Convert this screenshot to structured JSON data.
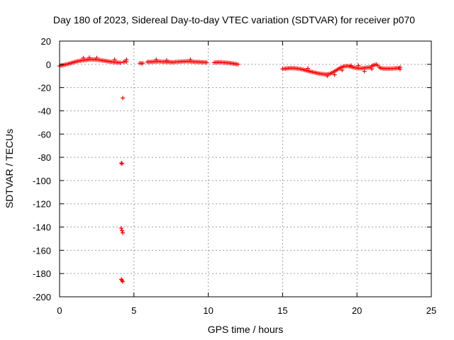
{
  "chart_data": {
    "type": "scatter",
    "title": "Day 180 of 2023, Sidereal Day-to-day VTEC variation (SDTVAR) for receiver p070",
    "xlabel": "GPS time / hours",
    "ylabel": "SDTVAR / TECUs",
    "xlim": [
      0,
      25
    ],
    "ylim": [
      -200,
      20
    ],
    "xticks": [
      0,
      5,
      10,
      15,
      20,
      25
    ],
    "yticks": [
      20,
      0,
      -20,
      -40,
      -60,
      -80,
      -100,
      -120,
      -140,
      -160,
      -180,
      -200
    ],
    "grid": true,
    "marker": "+",
    "marker_color": "#ff0000",
    "series": [
      {
        "name": "SDTVAR",
        "points": [
          [
            0.0,
            -1.5
          ],
          [
            0.1,
            -1.0
          ],
          [
            0.2,
            -0.8
          ],
          [
            0.3,
            -0.5
          ],
          [
            0.4,
            -0.2
          ],
          [
            0.5,
            0.2
          ],
          [
            0.6,
            0.5
          ],
          [
            0.7,
            0.8
          ],
          [
            0.8,
            1.2
          ],
          [
            0.9,
            1.5
          ],
          [
            1.0,
            2.0
          ],
          [
            1.1,
            2.3
          ],
          [
            1.2,
            2.6
          ],
          [
            1.3,
            2.9
          ],
          [
            1.4,
            3.1
          ],
          [
            1.5,
            3.3
          ],
          [
            1.6,
            3.5
          ],
          [
            1.7,
            3.7
          ],
          [
            1.8,
            3.8
          ],
          [
            1.9,
            4.0
          ],
          [
            2.0,
            4.1
          ],
          [
            2.1,
            4.2
          ],
          [
            2.2,
            4.2
          ],
          [
            2.3,
            4.1
          ],
          [
            2.4,
            4.0
          ],
          [
            2.5,
            3.9
          ],
          [
            2.6,
            3.8
          ],
          [
            2.7,
            3.7
          ],
          [
            2.8,
            3.5
          ],
          [
            2.9,
            3.3
          ],
          [
            3.0,
            3.1
          ],
          [
            3.1,
            2.9
          ],
          [
            3.2,
            2.7
          ],
          [
            3.3,
            2.5
          ],
          [
            3.4,
            2.3
          ],
          [
            3.5,
            2.1
          ],
          [
            3.6,
            2.0
          ],
          [
            3.7,
            1.8
          ],
          [
            3.8,
            1.7
          ],
          [
            3.9,
            1.6
          ],
          [
            4.0,
            1.5
          ],
          [
            4.1,
            1.3
          ],
          [
            4.3,
            2.0
          ],
          [
            4.4,
            2.5
          ],
          [
            4.5,
            2.2
          ],
          [
            4.25,
            -29
          ],
          [
            4.15,
            -85
          ],
          [
            4.2,
            -85.5
          ],
          [
            4.15,
            -141
          ],
          [
            4.2,
            -143
          ],
          [
            4.25,
            -145
          ],
          [
            4.15,
            -185
          ],
          [
            4.2,
            -186
          ],
          [
            4.25,
            -187
          ],
          [
            5.4,
            1.0
          ],
          [
            5.5,
            0.8
          ],
          [
            5.6,
            1.0
          ],
          [
            5.9,
            2.0
          ],
          [
            6.0,
            2.1
          ],
          [
            6.1,
            2.0
          ],
          [
            6.2,
            2.2
          ],
          [
            6.3,
            2.2
          ],
          [
            6.4,
            2.3
          ],
          [
            6.5,
            2.4
          ],
          [
            6.6,
            2.4
          ],
          [
            6.7,
            2.5
          ],
          [
            6.8,
            2.4
          ],
          [
            6.9,
            2.3
          ],
          [
            7.0,
            2.2
          ],
          [
            7.1,
            2.2
          ],
          [
            7.2,
            2.1
          ],
          [
            7.3,
            2.0
          ],
          [
            7.4,
            2.0
          ],
          [
            7.5,
            1.9
          ],
          [
            7.6,
            1.8
          ],
          [
            7.7,
            1.9
          ],
          [
            7.8,
            2.0
          ],
          [
            7.9,
            2.1
          ],
          [
            8.0,
            2.2
          ],
          [
            8.1,
            2.3
          ],
          [
            8.2,
            2.4
          ],
          [
            8.3,
            2.5
          ],
          [
            8.4,
            2.5
          ],
          [
            8.5,
            2.6
          ],
          [
            8.6,
            2.6
          ],
          [
            8.7,
            2.5
          ],
          [
            8.8,
            2.4
          ],
          [
            8.9,
            2.3
          ],
          [
            9.0,
            2.2
          ],
          [
            9.1,
            2.1
          ],
          [
            9.2,
            2.1
          ],
          [
            9.3,
            2.0
          ],
          [
            9.4,
            2.0
          ],
          [
            9.5,
            1.9
          ],
          [
            9.6,
            1.8
          ],
          [
            9.7,
            1.8
          ],
          [
            9.8,
            1.7
          ],
          [
            9.9,
            1.6
          ],
          [
            10.4,
            1.5
          ],
          [
            10.5,
            1.6
          ],
          [
            10.6,
            1.7
          ],
          [
            10.7,
            1.8
          ],
          [
            10.8,
            1.8
          ],
          [
            10.9,
            1.7
          ],
          [
            11.0,
            1.6
          ],
          [
            11.1,
            1.5
          ],
          [
            11.2,
            1.4
          ],
          [
            11.3,
            1.3
          ],
          [
            11.4,
            1.2
          ],
          [
            11.5,
            1.0
          ],
          [
            11.6,
            0.8
          ],
          [
            11.7,
            0.6
          ],
          [
            11.8,
            0.4
          ],
          [
            11.9,
            0.2
          ],
          [
            12.0,
            0.0
          ],
          [
            15.0,
            -4.0
          ],
          [
            15.1,
            -3.8
          ],
          [
            15.2,
            -3.7
          ],
          [
            15.3,
            -3.5
          ],
          [
            15.4,
            -3.4
          ],
          [
            15.5,
            -3.3
          ],
          [
            15.6,
            -3.3
          ],
          [
            15.7,
            -3.3
          ],
          [
            15.8,
            -3.4
          ],
          [
            15.9,
            -3.5
          ],
          [
            16.0,
            -3.6
          ],
          [
            16.1,
            -3.8
          ],
          [
            16.2,
            -4.0
          ],
          [
            16.3,
            -4.3
          ],
          [
            16.4,
            -4.6
          ],
          [
            16.5,
            -5.0
          ],
          [
            16.6,
            -5.3
          ],
          [
            16.7,
            -5.6
          ],
          [
            16.8,
            -6.0
          ],
          [
            16.9,
            -6.3
          ],
          [
            17.0,
            -6.6
          ],
          [
            17.1,
            -6.9
          ],
          [
            17.2,
            -7.2
          ],
          [
            17.3,
            -7.5
          ],
          [
            17.4,
            -7.8
          ],
          [
            17.5,
            -8.0
          ],
          [
            17.6,
            -8.2
          ],
          [
            17.7,
            -8.4
          ],
          [
            17.8,
            -8.5
          ],
          [
            17.9,
            -8.6
          ],
          [
            18.0,
            -8.6
          ],
          [
            18.1,
            -8.4
          ],
          [
            18.2,
            -8.0
          ],
          [
            18.3,
            -7.4
          ],
          [
            18.4,
            -6.8
          ],
          [
            18.5,
            -6.0
          ],
          [
            18.6,
            -5.2
          ],
          [
            18.7,
            -4.4
          ],
          [
            18.8,
            -3.6
          ],
          [
            18.9,
            -2.9
          ],
          [
            19.0,
            -2.3
          ],
          [
            19.1,
            -1.9
          ],
          [
            19.2,
            -1.6
          ],
          [
            19.3,
            -1.5
          ],
          [
            19.4,
            -1.5
          ],
          [
            19.5,
            -1.7
          ],
          [
            19.6,
            -2.0
          ],
          [
            19.7,
            -2.4
          ],
          [
            19.8,
            -2.8
          ],
          [
            19.9,
            -3.0
          ],
          [
            20.0,
            -3.2
          ],
          [
            20.1,
            -3.4
          ],
          [
            20.2,
            -3.5
          ],
          [
            20.3,
            -3.4
          ],
          [
            20.4,
            -3.3
          ],
          [
            20.5,
            -3.1
          ],
          [
            20.6,
            -2.9
          ],
          [
            20.7,
            -2.8
          ],
          [
            20.8,
            -2.7
          ],
          [
            20.9,
            -2.6
          ],
          [
            21.0,
            -1.5
          ],
          [
            21.1,
            -0.8
          ],
          [
            21.2,
            -0.5
          ],
          [
            21.3,
            0.0
          ],
          [
            21.4,
            -1.0
          ],
          [
            21.5,
            -2.5
          ],
          [
            21.6,
            -3.3
          ],
          [
            21.7,
            -3.5
          ],
          [
            21.8,
            -3.6
          ],
          [
            21.9,
            -3.7
          ],
          [
            22.0,
            -3.7
          ],
          [
            22.1,
            -3.7
          ],
          [
            22.2,
            -3.7
          ],
          [
            22.3,
            -3.6
          ],
          [
            22.4,
            -3.6
          ],
          [
            22.5,
            -3.5
          ],
          [
            22.6,
            -3.4
          ],
          [
            22.7,
            -3.3
          ],
          [
            22.8,
            -3.2
          ],
          [
            22.9,
            -4.2
          ],
          [
            16.7,
            -3.5
          ],
          [
            18.0,
            -10.0
          ],
          [
            18.5,
            -9.0
          ],
          [
            19.0,
            -5.0
          ],
          [
            19.6,
            -1.0
          ],
          [
            20.1,
            -1.0
          ],
          [
            20.5,
            -6.0
          ],
          [
            21.0,
            -4.0
          ],
          [
            22.9,
            -2.5
          ],
          [
            1.6,
            5.5
          ],
          [
            2.0,
            5.8
          ],
          [
            2.5,
            5.5
          ],
          [
            3.7,
            4.0
          ],
          [
            4.5,
            4.0
          ],
          [
            6.5,
            4.0
          ],
          [
            7.2,
            3.5
          ],
          [
            8.8,
            4.0
          ]
        ]
      }
    ]
  }
}
